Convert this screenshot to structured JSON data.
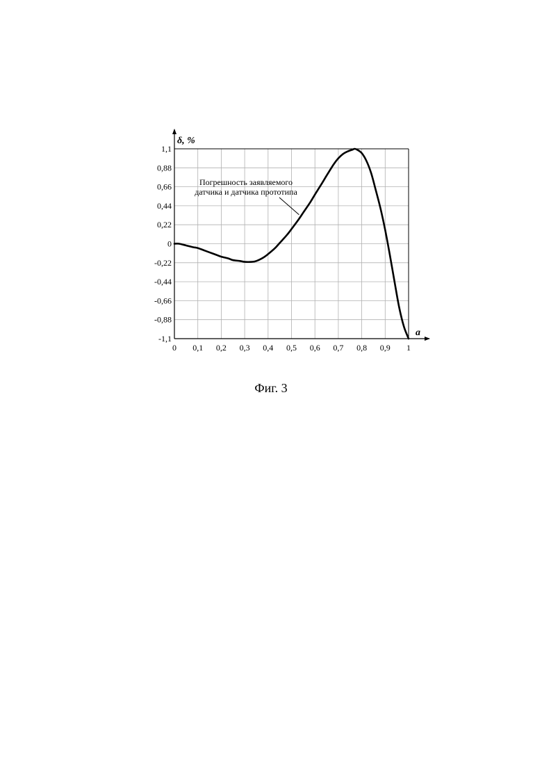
{
  "chart_data": {
    "type": "line",
    "title": "",
    "xlabel": "a",
    "ylabel": "δ, %",
    "xlim": [
      0,
      1
    ],
    "ylim": [
      -1.1,
      1.1
    ],
    "x_ticks": [
      "0",
      "0,1",
      "0,2",
      "0,3",
      "0,4",
      "0,5",
      "0,6",
      "0,7",
      "0,8",
      "0,9",
      "1"
    ],
    "x_tick_values": [
      0,
      0.1,
      0.2,
      0.3,
      0.4,
      0.5,
      0.6,
      0.7,
      0.8,
      0.9,
      1.0
    ],
    "y_ticks": [
      "1,1",
      "0,88",
      "0,66",
      "0,44",
      "0,22",
      "0",
      "-0,22",
      "-0,44",
      "-0,66",
      "-0,88",
      "-1,1"
    ],
    "y_tick_values": [
      1.1,
      0.88,
      0.66,
      0.44,
      0.22,
      0,
      -0.22,
      -0.44,
      -0.66,
      -0.88,
      -1.1
    ],
    "grid": true,
    "annotation": {
      "lines": [
        "Погрешность заявляемого",
        "датчика и датчика прототипа"
      ],
      "points_to": {
        "x": 0.55,
        "y": 0.32
      }
    },
    "series": [
      {
        "x": [
          0.0,
          0.02,
          0.05,
          0.08,
          0.1,
          0.13,
          0.15,
          0.18,
          0.2,
          0.23,
          0.25,
          0.28,
          0.3,
          0.33,
          0.35,
          0.38,
          0.4,
          0.43,
          0.45,
          0.48,
          0.5,
          0.53,
          0.55,
          0.58,
          0.6,
          0.63,
          0.65,
          0.68,
          0.7,
          0.72,
          0.74,
          0.76,
          0.77,
          0.78,
          0.8,
          0.82,
          0.84,
          0.86,
          0.88,
          0.9,
          0.92,
          0.94,
          0.96,
          0.98,
          1.0
        ],
        "y": [
          0.0,
          0.0,
          -0.02,
          -0.04,
          -0.05,
          -0.08,
          -0.1,
          -0.13,
          -0.15,
          -0.17,
          -0.19,
          -0.2,
          -0.21,
          -0.21,
          -0.2,
          -0.16,
          -0.12,
          -0.05,
          0.01,
          0.1,
          0.17,
          0.28,
          0.36,
          0.48,
          0.57,
          0.7,
          0.79,
          0.92,
          0.99,
          1.04,
          1.07,
          1.09,
          1.1,
          1.09,
          1.05,
          0.96,
          0.82,
          0.62,
          0.41,
          0.16,
          -0.13,
          -0.44,
          -0.74,
          -0.96,
          -1.1
        ]
      }
    ]
  },
  "caption": "Фиг. 3"
}
